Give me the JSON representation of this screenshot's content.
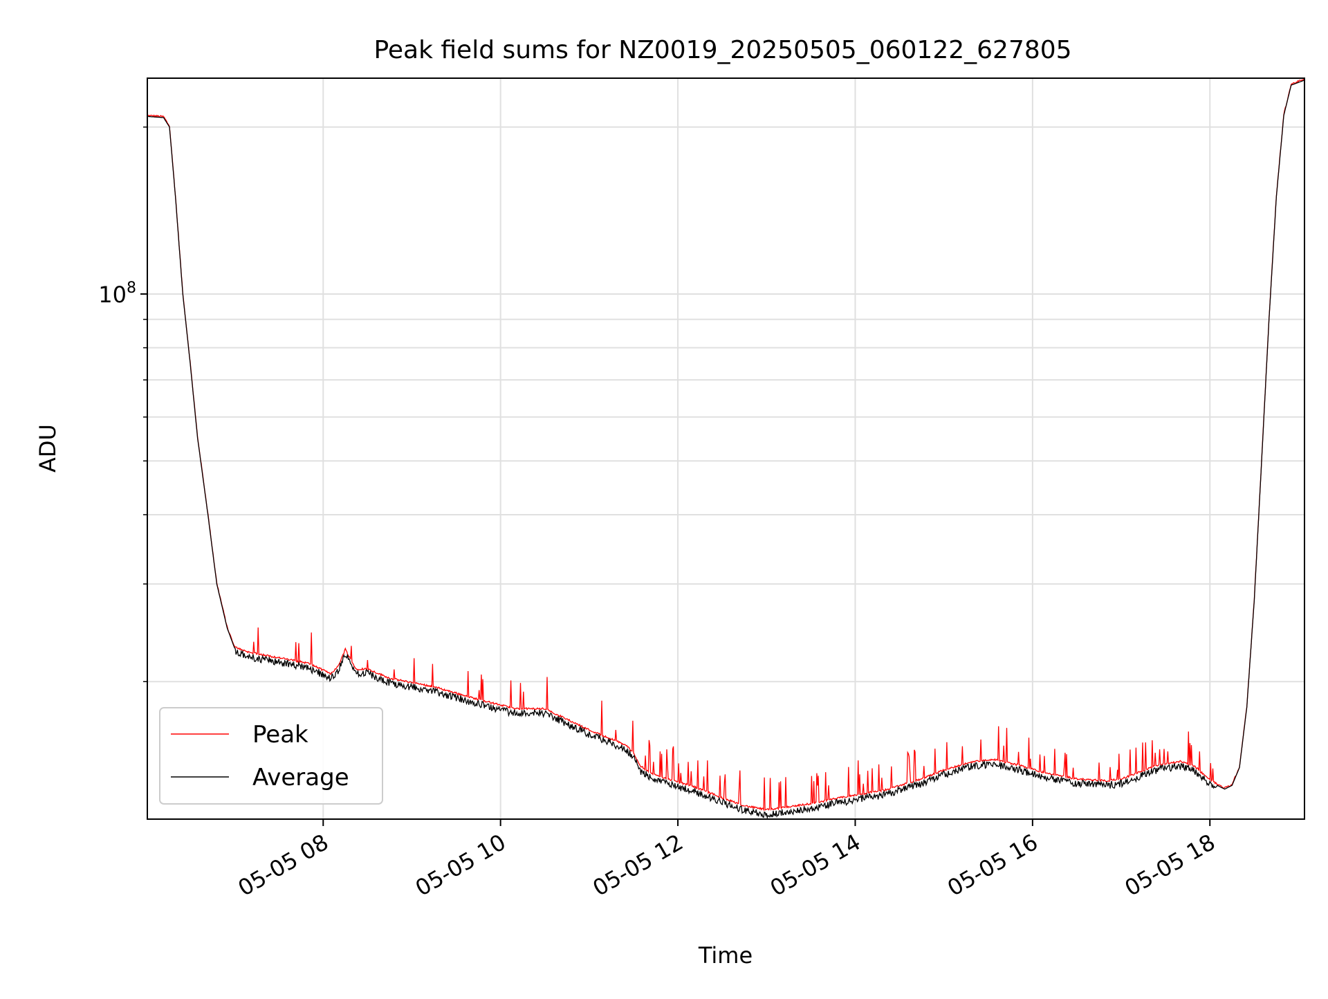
{
  "chart_data": {
    "type": "line",
    "title": "Peak field sums for NZ0019_20250505_060122_627805",
    "xlabel": "Time",
    "ylabel": "ADU",
    "y_scale": "log",
    "ylim": [
      11300000,
      245000000
    ],
    "xlim": [
      "2025-05-05 06:01",
      "2025-05-05 19:04"
    ],
    "x_tick_labels": [
      "05-05 08",
      "05-05 10",
      "05-05 12",
      "05-05 14",
      "05-05 16",
      "05-05 18"
    ],
    "x_ticks": [
      "2025-05-05 08:00",
      "2025-05-05 10:00",
      "2025-05-05 12:00",
      "2025-05-05 14:00",
      "2025-05-05 16:00",
      "2025-05-05 18:00"
    ],
    "y_tick_label": {
      "base": "10",
      "exp": "8"
    },
    "y_tick_value": 100000000,
    "grid": true,
    "legend_position": "lower-left",
    "series": [
      {
        "name": "Peak",
        "color": "#ff0000"
      },
      {
        "name": "Average",
        "color": "#000000"
      }
    ],
    "average": {
      "x": [
        "2025-05-05 06:01",
        "2025-05-05 06:12",
        "2025-05-05 06:16",
        "2025-05-05 06:20",
        "2025-05-05 06:25",
        "2025-05-05 06:30",
        "2025-05-05 06:35",
        "2025-05-05 06:42",
        "2025-05-05 06:48",
        "2025-05-05 06:55",
        "2025-05-05 07:00",
        "2025-05-05 07:10",
        "2025-05-05 07:30",
        "2025-05-05 07:50",
        "2025-05-05 08:05",
        "2025-05-05 08:10",
        "2025-05-05 08:15",
        "2025-05-05 08:22",
        "2025-05-05 08:30",
        "2025-05-05 08:45",
        "2025-05-05 09:15",
        "2025-05-05 09:45",
        "2025-05-05 10:10",
        "2025-05-05 10:30",
        "2025-05-05 11:00",
        "2025-05-05 11:25",
        "2025-05-05 11:30",
        "2025-05-05 11:35",
        "2025-05-05 11:45",
        "2025-05-05 12:10",
        "2025-05-05 12:30",
        "2025-05-05 12:45",
        "2025-05-05 13:00",
        "2025-05-05 13:30",
        "2025-05-05 13:50",
        "2025-05-05 14:20",
        "2025-05-05 14:45",
        "2025-05-05 15:00",
        "2025-05-05 15:20",
        "2025-05-05 15:35",
        "2025-05-05 15:50",
        "2025-05-05 16:10",
        "2025-05-05 16:30",
        "2025-05-05 16:50",
        "2025-05-05 17:00",
        "2025-05-05 17:10",
        "2025-05-05 17:25",
        "2025-05-05 17:40",
        "2025-05-05 17:50",
        "2025-05-05 17:55",
        "2025-05-05 18:05",
        "2025-05-05 18:10",
        "2025-05-05 18:15",
        "2025-05-05 18:20",
        "2025-05-05 18:25",
        "2025-05-05 18:30",
        "2025-05-05 18:35",
        "2025-05-05 18:40",
        "2025-05-05 18:45",
        "2025-05-05 18:50",
        "2025-05-05 18:55",
        "2025-05-05 19:04"
      ],
      "y": [
        209000000,
        208000000,
        200000000,
        150000000,
        100000000,
        75000000,
        55000000,
        40000000,
        30000000,
        25000000,
        23000000,
        22500000,
        22000000,
        21500000,
        20600000,
        21200000,
        22800000,
        21000000,
        21000000,
        20200000,
        19500000,
        18500000,
        17800000,
        17800000,
        16300000,
        15300000,
        14800000,
        14000000,
        13500000,
        12900000,
        12300000,
        11900000,
        11700000,
        12000000,
        12300000,
        12700000,
        13300000,
        13800000,
        14300000,
        14400000,
        14100000,
        13600000,
        13300000,
        13200000,
        13300000,
        13600000,
        14100000,
        14300000,
        14000000,
        13600000,
        13000000,
        12800000,
        13000000,
        14000000,
        18000000,
        28000000,
        50000000,
        90000000,
        150000000,
        210000000,
        238000000,
        243000000
      ]
    }
  }
}
